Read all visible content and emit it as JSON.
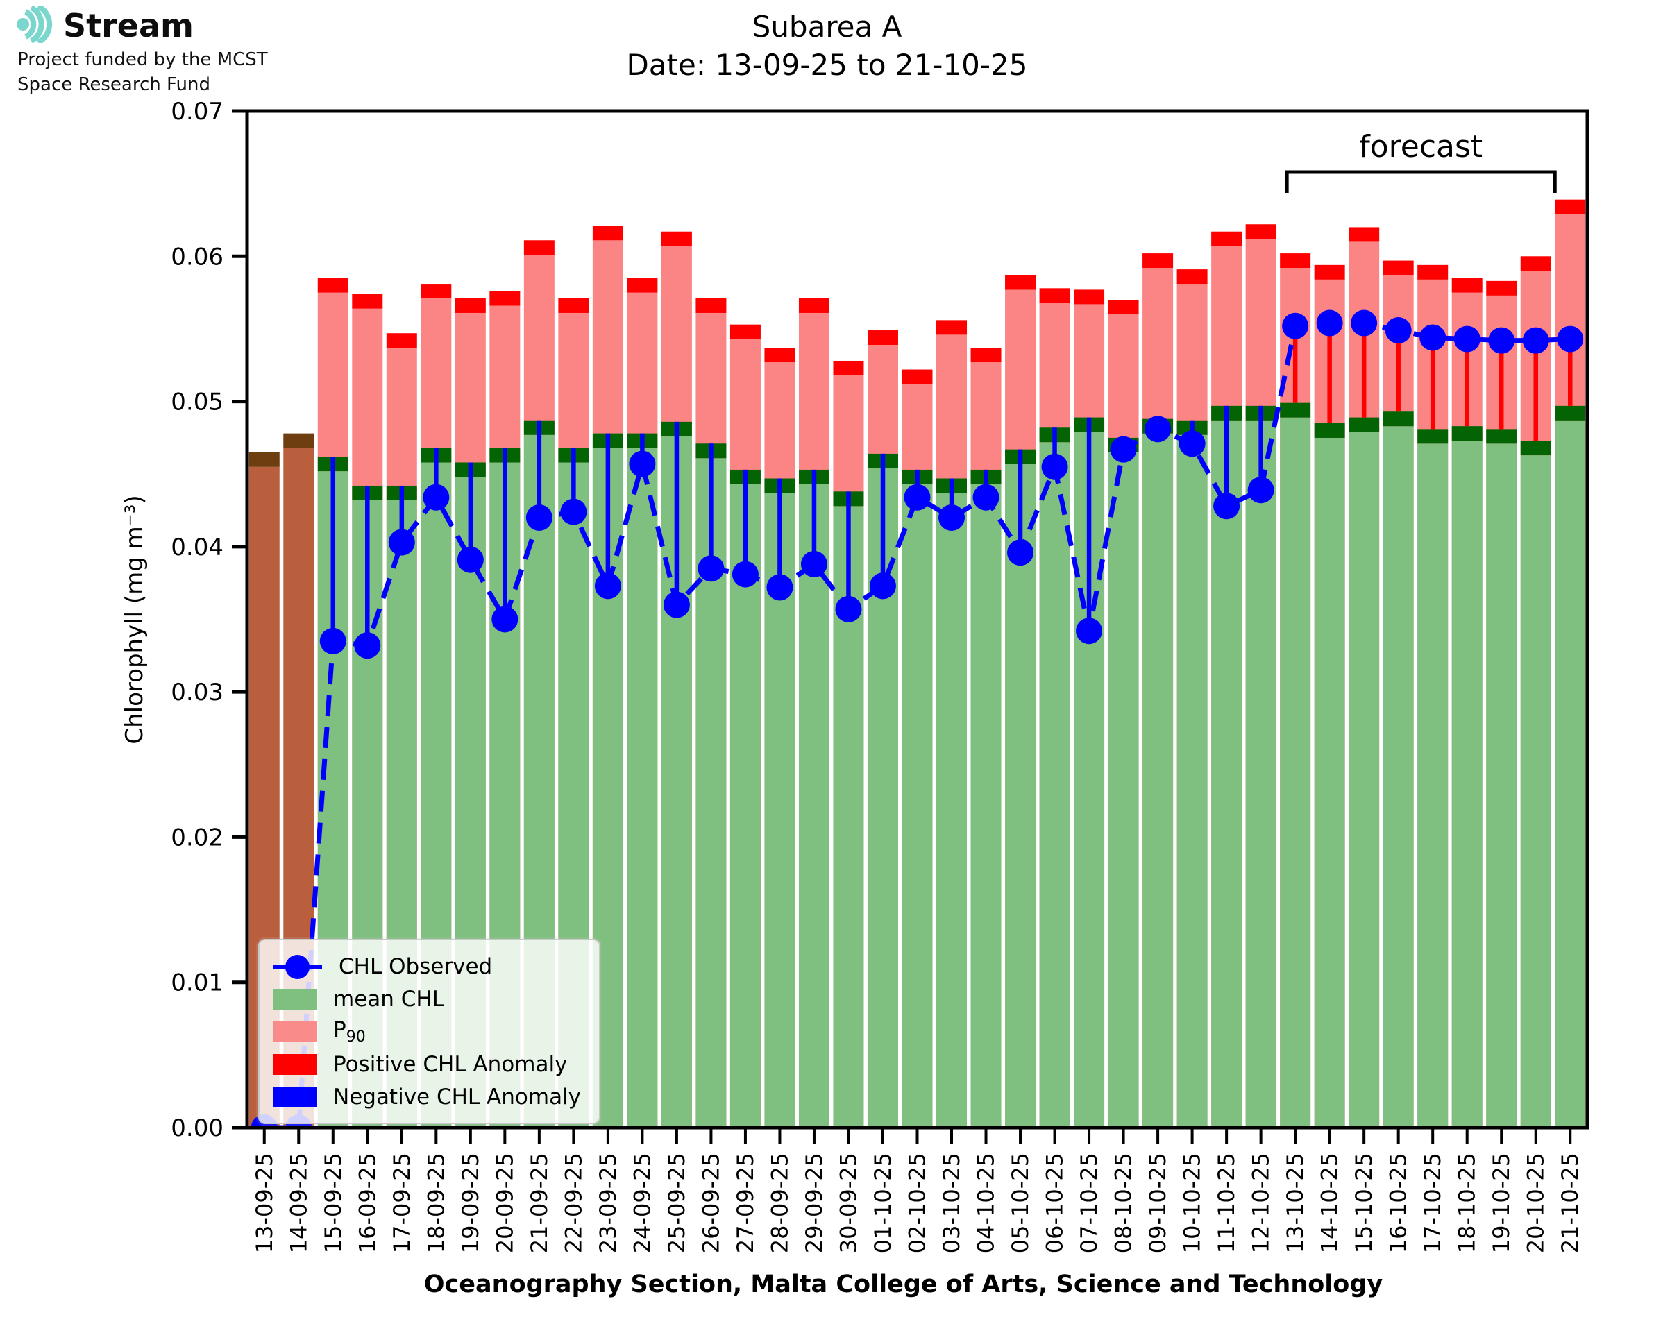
{
  "logo": {
    "brand": "Stream",
    "funding_line1": "Project funded by the MCST",
    "funding_line2": "Space Research Fund",
    "accent_color": "#7bd6cd"
  },
  "title": {
    "line1": "Subarea A",
    "line2": "Date: 13-09-25 to 21-10-25"
  },
  "axes": {
    "ylabel": "Chlorophyll (mg m⁻³)",
    "xlabel": "Oceanography Section, Malta College of Arts, Science and Technology",
    "y_tick_labels": [
      "0.00",
      "0.01",
      "0.02",
      "0.03",
      "0.04",
      "0.05",
      "0.06",
      "0.07"
    ],
    "ylim": [
      0,
      0.07
    ],
    "grid": "off"
  },
  "forecast": {
    "label": "forecast",
    "start_index": 30,
    "end_index": 38
  },
  "legend": {
    "entries": [
      {
        "label": "CHL Observed",
        "sub": "",
        "type": "line-dot",
        "color": "#0000ff"
      },
      {
        "label": "mean CHL",
        "sub": "",
        "type": "patch",
        "color": "#7fbf7f"
      },
      {
        "label": "P",
        "sub": "90",
        "type": "patch",
        "color": "#f98b8b"
      },
      {
        "label": "Positive CHL Anomaly",
        "sub": "",
        "type": "patch",
        "color": "#ff0000"
      },
      {
        "label": "Negative CHL Anomaly",
        "sub": "",
        "type": "patch",
        "color": "#0000ff"
      }
    ]
  },
  "colors": {
    "mean_fill": "#7fbf7f",
    "mean_cap": "#046404",
    "p90_fill": "#fb8585",
    "p90_cap": "#ff0000",
    "nodata_fill": "#b95f3e",
    "nodata_cap": "#6e3d10",
    "observed": "#0000ff",
    "neg_anomaly": "#0000ff",
    "pos_anomaly": "#ff0000",
    "axis": "#000000"
  },
  "chart_data": {
    "type": "bar",
    "title": "Subarea A  Date: 13-09-25 to 21-10-25",
    "xlabel": "Oceanography Section, Malta College of Arts, Science and Technology",
    "ylabel": "Chlorophyll (mg m⁻³)",
    "ylim": [
      0,
      0.07
    ],
    "legend_position": "lower left",
    "dates": [
      "13-09-25",
      "14-09-25",
      "15-09-25",
      "16-09-25",
      "17-09-25",
      "18-09-25",
      "19-09-25",
      "20-09-25",
      "21-09-25",
      "22-09-25",
      "23-09-25",
      "24-09-25",
      "25-09-25",
      "26-09-25",
      "27-09-25",
      "28-09-25",
      "29-09-25",
      "30-09-25",
      "01-10-25",
      "02-10-25",
      "03-10-25",
      "04-10-25",
      "05-10-25",
      "06-10-25",
      "07-10-25",
      "08-10-25",
      "09-10-25",
      "10-10-25",
      "11-10-25",
      "12-10-25",
      "13-10-25",
      "14-10-25",
      "15-10-25",
      "16-10-25",
      "17-10-25",
      "18-10-25",
      "19-10-25",
      "20-10-25",
      "21-10-25"
    ],
    "series": [
      {
        "name": "P90",
        "values": [
          null,
          null,
          0.0585,
          0.0574,
          0.0547,
          0.0581,
          0.0571,
          0.0576,
          0.0611,
          0.0571,
          0.0621,
          0.0585,
          0.0617,
          0.0571,
          0.0553,
          0.0537,
          0.0571,
          0.0528,
          0.0549,
          0.0522,
          0.0556,
          0.0537,
          0.0587,
          0.0578,
          0.0577,
          0.057,
          0.0602,
          0.0591,
          0.0617,
          0.0622,
          0.0602,
          0.0594,
          0.062,
          0.0597,
          0.0594,
          0.0585,
          0.0583,
          0.06,
          0.0639
        ]
      },
      {
        "name": "mean CHL",
        "values": [
          null,
          null,
          0.0462,
          0.0442,
          0.0442,
          0.0468,
          0.0458,
          0.0468,
          0.0487,
          0.0468,
          0.0478,
          0.0478,
          0.0486,
          0.0471,
          0.0453,
          0.0447,
          0.0453,
          0.0438,
          0.0464,
          0.0453,
          0.0447,
          0.0453,
          0.0467,
          0.0482,
          0.0489,
          0.0475,
          0.0488,
          0.0487,
          0.0497,
          0.0497,
          0.0499,
          0.0485,
          0.0489,
          0.0493,
          0.0481,
          0.0483,
          0.0481,
          0.0473,
          0.0497
        ]
      },
      {
        "name": "CHL Observed",
        "values": [
          0.0,
          0.0,
          0.0335,
          0.0332,
          0.0403,
          0.0434,
          0.0391,
          0.035,
          0.042,
          0.0424,
          0.0373,
          0.0457,
          0.036,
          0.0385,
          0.0381,
          0.0372,
          0.0388,
          0.0357,
          0.0373,
          0.0434,
          0.042,
          0.0434,
          0.0396,
          0.0455,
          0.0342,
          0.0467,
          0.0481,
          0.0471,
          0.0428,
          0.0439,
          0.0552,
          0.0554,
          0.0554,
          0.0549,
          0.0544,
          0.0543,
          0.0542,
          0.0542,
          0.0543
        ]
      },
      {
        "name": "no-data climatology bar",
        "values": [
          0.0465,
          0.0478,
          null,
          null,
          null,
          null,
          null,
          null,
          null,
          null,
          null,
          null,
          null,
          null,
          null,
          null,
          null,
          null,
          null,
          null,
          null,
          null,
          null,
          null,
          null,
          null,
          null,
          null,
          null,
          null,
          null,
          null,
          null,
          null,
          null,
          null,
          null,
          null,
          null
        ]
      }
    ]
  }
}
